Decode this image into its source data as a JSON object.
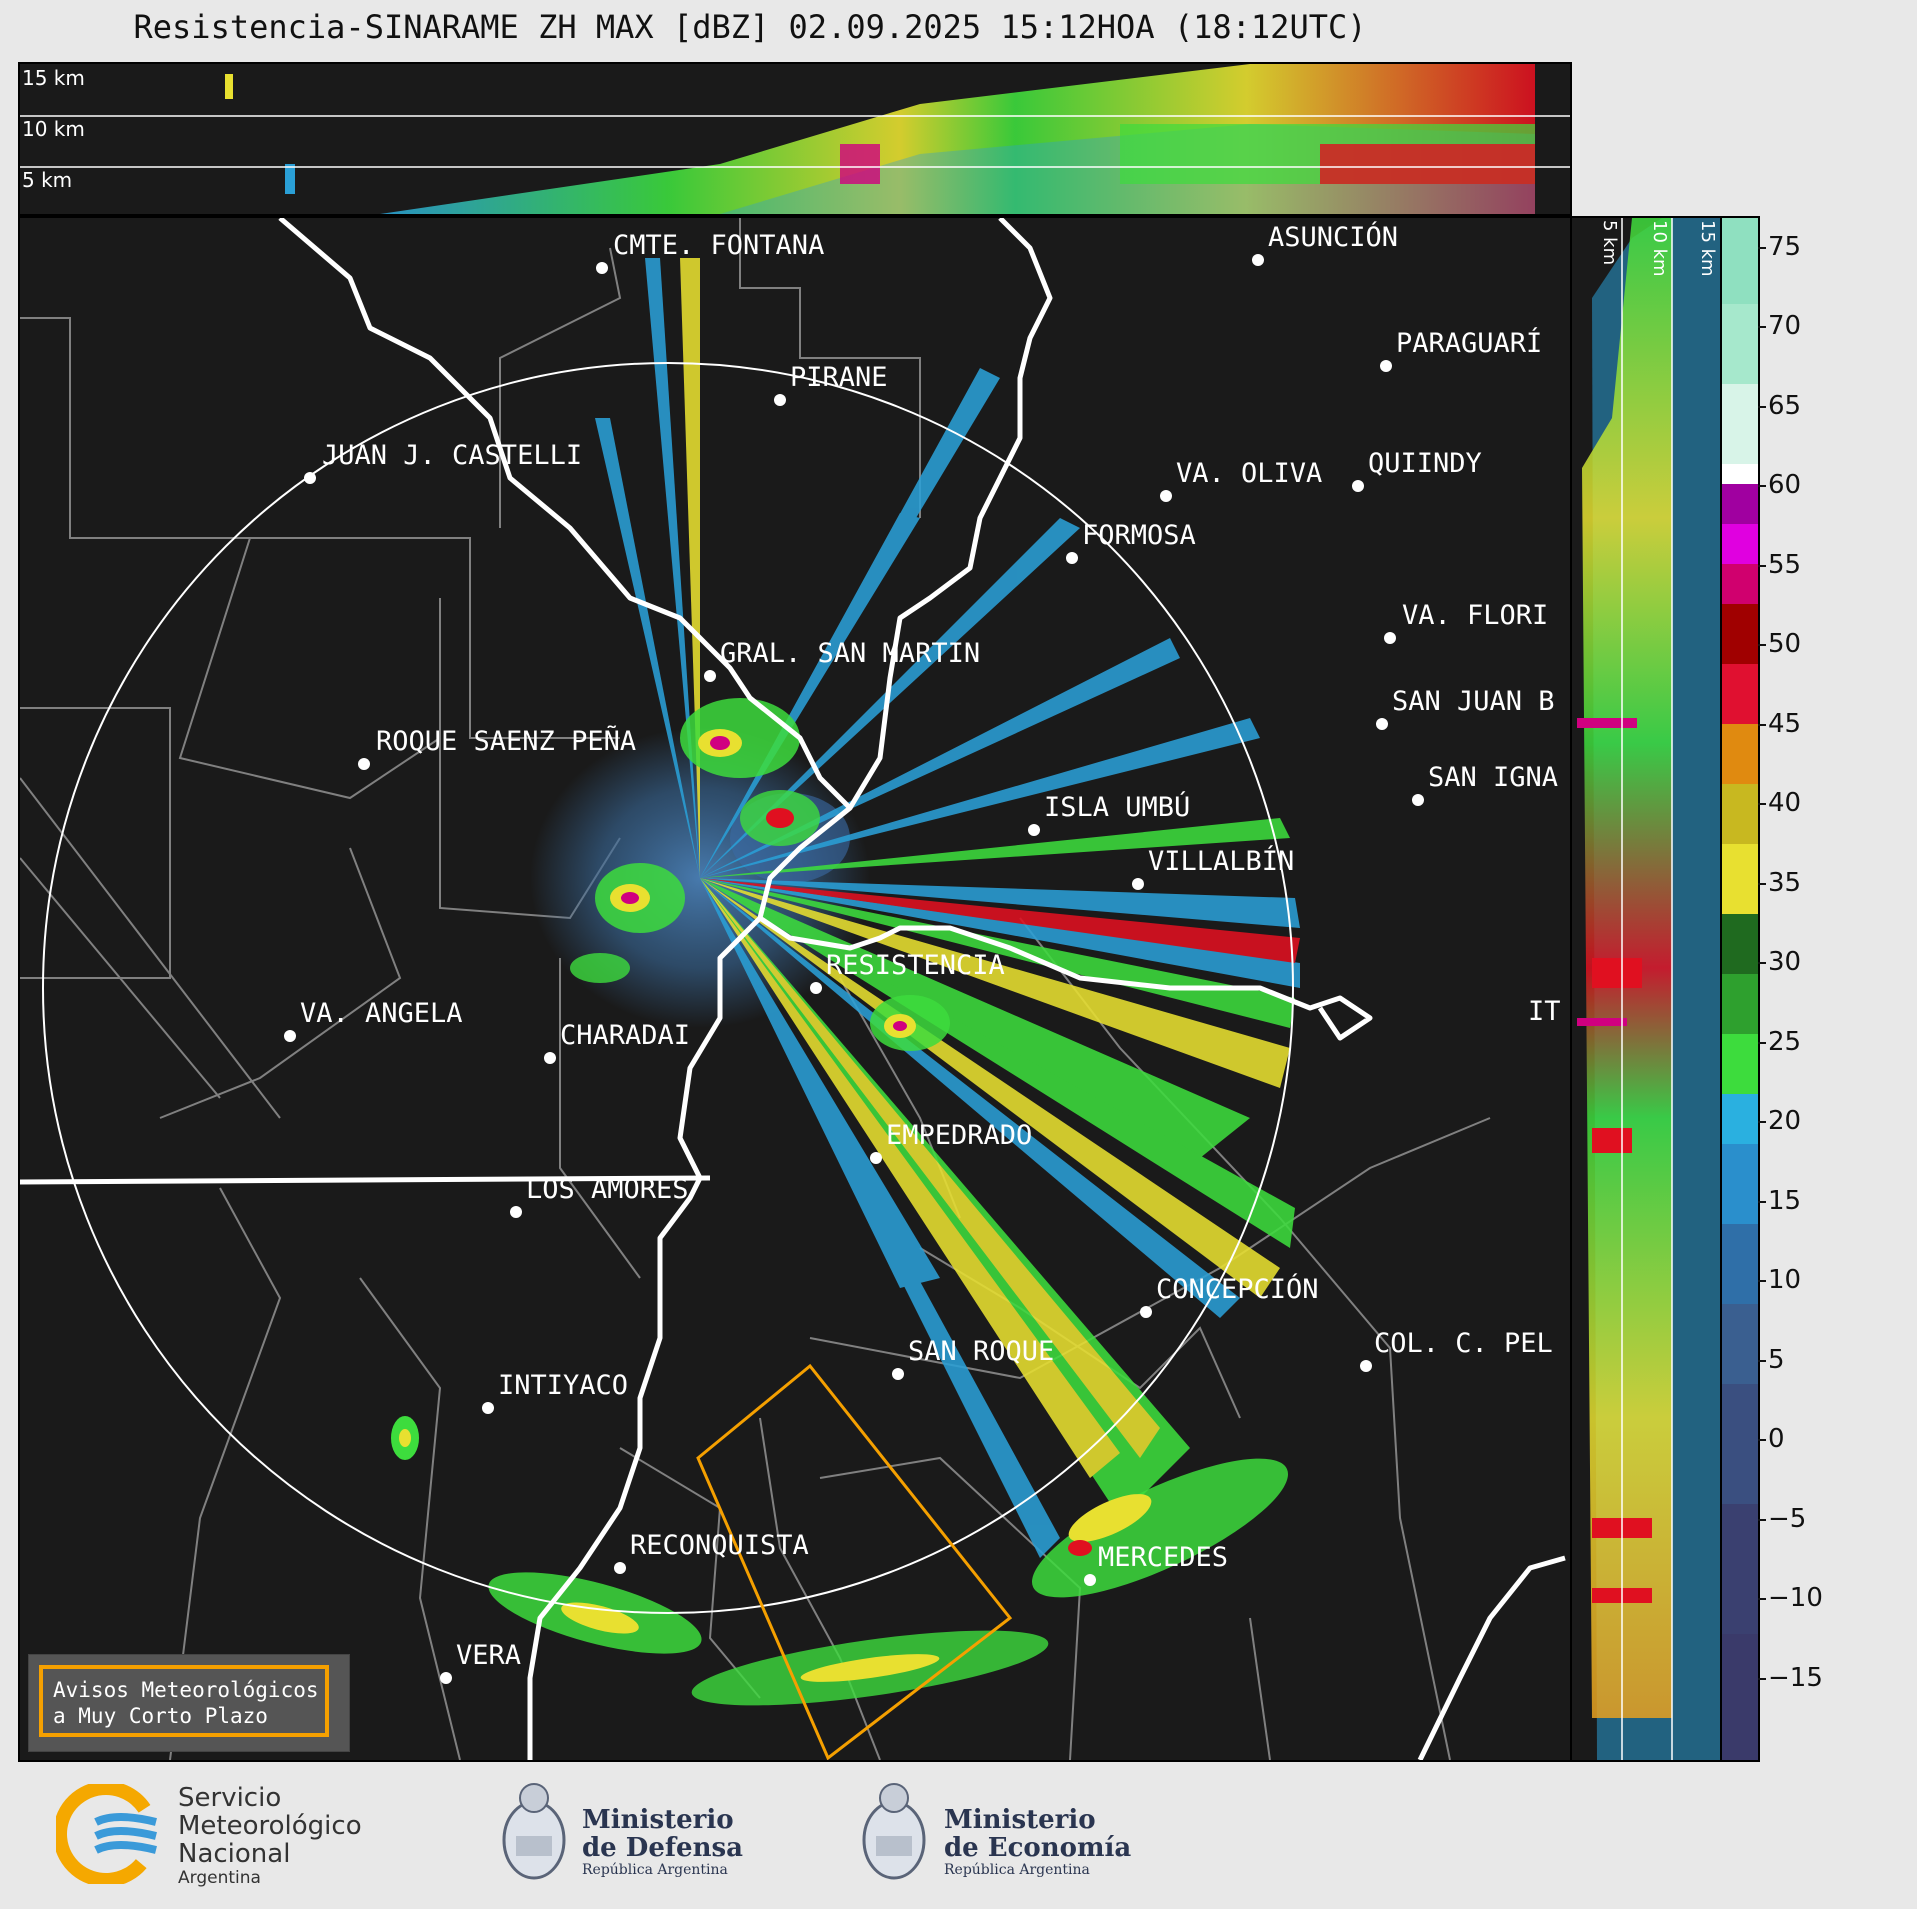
{
  "title": "Resistencia-SINARAME ZH MAX [dBZ] 02.09.2025 15:12HOA (18:12UTC)",
  "top_xsec": {
    "labels": [
      "15 km",
      "10 km",
      "5 km"
    ]
  },
  "right_xsec": {
    "labels": [
      "5 km",
      "10 km",
      "15 km"
    ]
  },
  "colorbar": {
    "unit": "dBZ",
    "ticks": [
      "75",
      "70",
      "65",
      "60",
      "55",
      "50",
      "45",
      "40",
      "35",
      "30",
      "25",
      "20",
      "15",
      "10",
      "5",
      "0",
      "−5",
      "−10",
      "−15"
    ],
    "range": [
      -20,
      77
    ]
  },
  "cities": [
    {
      "name": "CMTE. FONTANA"
    },
    {
      "name": "ASUNCIÓN"
    },
    {
      "name": "PARAGUARÍ"
    },
    {
      "name": "PIRANE"
    },
    {
      "name": "JUAN J. CASTELLI"
    },
    {
      "name": "VA. OLIVA"
    },
    {
      "name": "QUIINDY"
    },
    {
      "name": "FORMOSA"
    },
    {
      "name": "VA. FLORI"
    },
    {
      "name": "GRAL. SAN MARTIN"
    },
    {
      "name": "SAN JUAN B"
    },
    {
      "name": "ROQUE SAENZ PEÑA"
    },
    {
      "name": "SAN IGNA"
    },
    {
      "name": "ISLA UMBÚ"
    },
    {
      "name": "VILLALBÍN"
    },
    {
      "name": "RESISTENCIA"
    },
    {
      "name": "VA. ANGELA"
    },
    {
      "name": "CHARADAI"
    },
    {
      "name": "IT"
    },
    {
      "name": "EMPEDRADO"
    },
    {
      "name": "LOS AMORES"
    },
    {
      "name": "CONCEPCIÓN"
    },
    {
      "name": "SAN ROQUE"
    },
    {
      "name": "COL. C. PEL"
    },
    {
      "name": "INTIYACO"
    },
    {
      "name": "RECONQUISTA"
    },
    {
      "name": "MERCEDES"
    },
    {
      "name": "VERA"
    }
  ],
  "avisos": {
    "line1": "Avisos Meteorológicos",
    "line2": "a Muy Corto Plazo"
  },
  "logos": {
    "smn": {
      "line1": "Servicio",
      "line2": "Meteorológico",
      "line3": "Nacional",
      "line4": "Argentina"
    },
    "defensa": {
      "line1": "Ministerio",
      "line2": "de Defensa",
      "line3": "República Argentina"
    },
    "economia": {
      "line1": "Ministerio",
      "line2": "de Economía",
      "line3": "República Argentina"
    }
  },
  "colors": {
    "warning_box": "#f5a000",
    "background": "#1a1a1a",
    "border": "#ffffff",
    "province": "#808080"
  }
}
